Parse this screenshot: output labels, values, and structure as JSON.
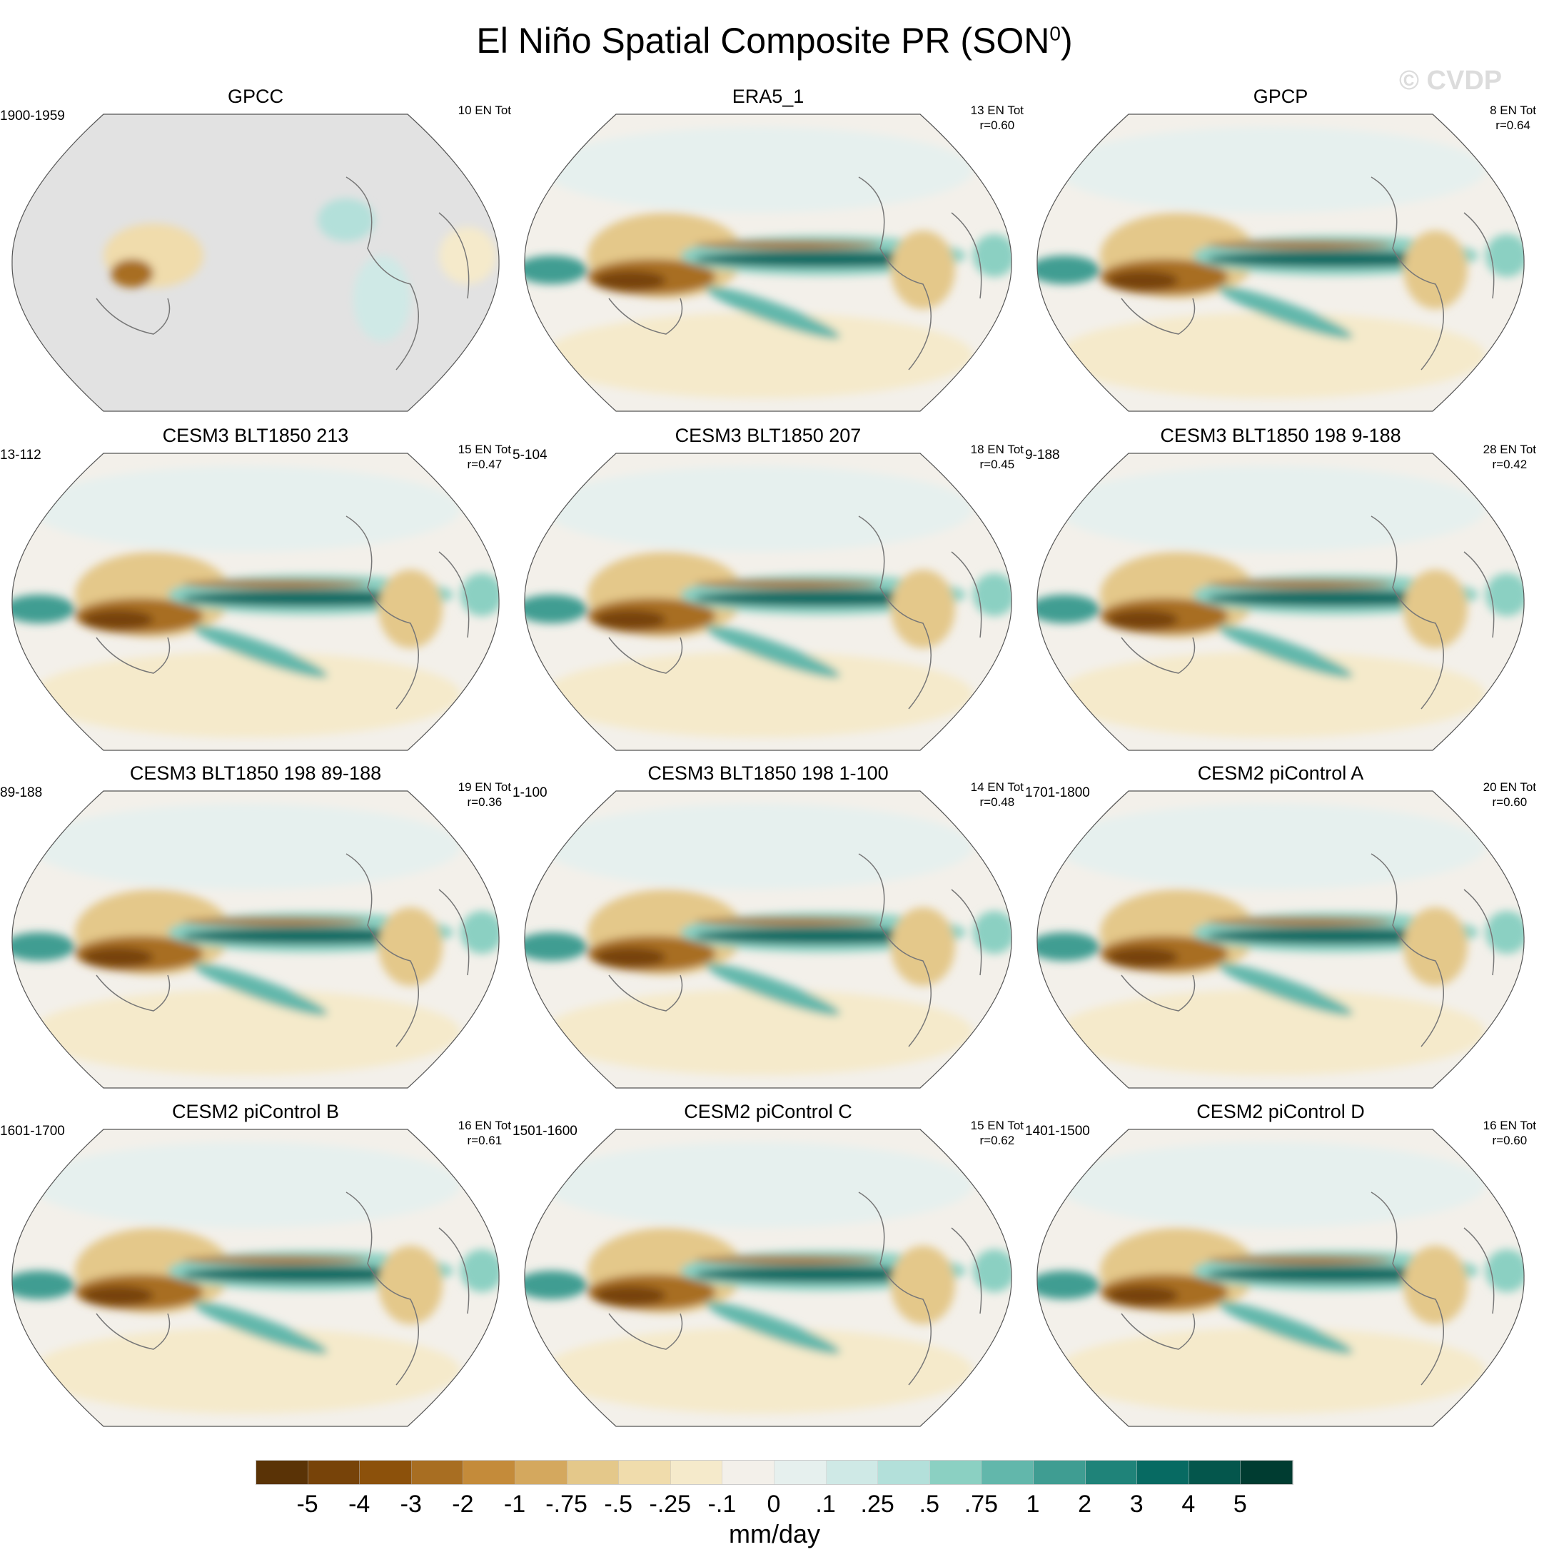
{
  "title": "El Niño Spatial Composite PR (SON",
  "title_sup": "0",
  "title_close": ")",
  "watermark": "© CVDP",
  "panels": [
    {
      "title": "GPCC",
      "left": "1900-1959",
      "en": "10 EN Tot",
      "r": "",
      "obs_mask": true
    },
    {
      "title": "ERA5_1",
      "left": "",
      "en": "13 EN Tot",
      "r": "r=0.60"
    },
    {
      "title": "GPCP",
      "left": "",
      "en": "8 EN Tot",
      "r": "r=0.64"
    },
    {
      "title": "CESM3 BLT1850 213",
      "left": "13-112",
      "en": "15 EN Tot",
      "r": "r=0.47"
    },
    {
      "title": "CESM3 BLT1850 207",
      "left": "5-104",
      "en": "18 EN Tot",
      "r": "r=0.45"
    },
    {
      "title": "CESM3 BLT1850 198 9-188",
      "left": "9-188",
      "en": "28 EN Tot",
      "r": "r=0.42"
    },
    {
      "title": "CESM3 BLT1850 198 89-188",
      "left": "89-188",
      "en": "19 EN Tot",
      "r": "r=0.36"
    },
    {
      "title": "CESM3 BLT1850 198 1-100",
      "left": "1-100",
      "en": "14 EN Tot",
      "r": "r=0.48"
    },
    {
      "title": "CESM2 piControl A",
      "left": "1701-1800",
      "en": "20 EN Tot",
      "r": "r=0.60"
    },
    {
      "title": "CESM2 piControl B",
      "left": "1601-1700",
      "en": "16 EN Tot",
      "r": "r=0.61"
    },
    {
      "title": "CESM2 piControl C",
      "left": "1501-1600",
      "en": "15 EN Tot",
      "r": "r=0.62"
    },
    {
      "title": "CESM2 piControl D",
      "left": "1401-1500",
      "en": "16 EN Tot",
      "r": "r=0.60"
    }
  ],
  "chart_data": {
    "type": "heatmap",
    "title": "El Niño Spatial Composite PR (SON0)",
    "colorbar": {
      "label": "mm/day",
      "levels": [
        "-5",
        "-4",
        "-3",
        "-2",
        "-1",
        "-.75",
        "-.5",
        "-.25",
        "-.1",
        "0",
        ".1",
        ".25",
        ".5",
        ".75",
        "1",
        "2",
        "3",
        "4",
        "5"
      ],
      "colors": [
        "#5a3306",
        "#774309",
        "#8c510b",
        "#a86e22",
        "#c48b3a",
        "#d4a85e",
        "#e4c88a",
        "#f0dcac",
        "#f5eacb",
        "#f3f0ea",
        "#e6f0ee",
        "#cfe9e6",
        "#b3e0da",
        "#8bd0c2",
        "#62b7ab",
        "#3f9d92",
        "#1f8379",
        "#076a62",
        "#04564c",
        "#003c31"
      ]
    },
    "mask_color": "#e2e2e2"
  }
}
